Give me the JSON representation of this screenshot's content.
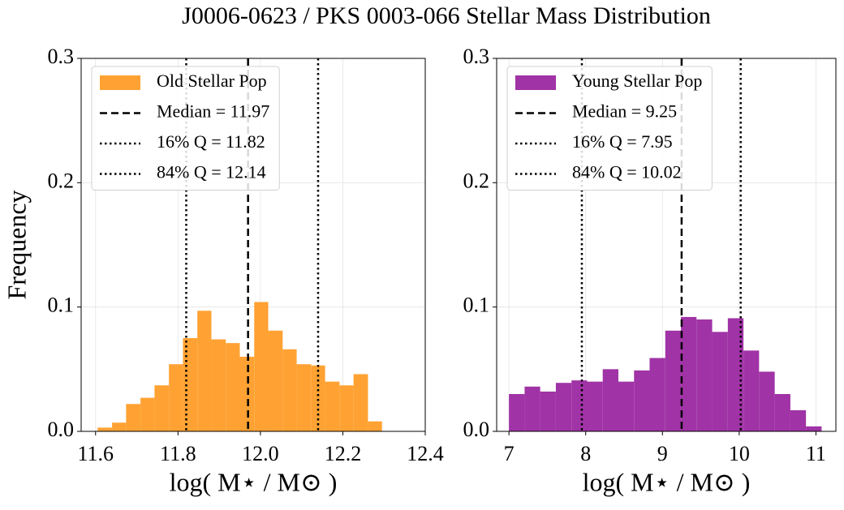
{
  "title": "J0006-0623 / PKS 0003-066 Stellar Mass Distribution",
  "chart_data": [
    {
      "type": "histogram",
      "xlabel": "log( M⋆ / M⊙ )",
      "ylabel": "Frequency",
      "bins": [
        11.605,
        11.64,
        11.674,
        11.709,
        11.743,
        11.778,
        11.812,
        11.847,
        11.881,
        11.916,
        11.95,
        11.985,
        12.019,
        12.054,
        12.088,
        12.123,
        12.157,
        12.192,
        12.226,
        12.261,
        12.295
      ],
      "series": [
        {
          "name": "Old Stellar Pop",
          "color": "#ffa233",
          "values": [
            0.003,
            0.007,
            0.022,
            0.027,
            0.037,
            0.054,
            0.075,
            0.097,
            0.074,
            0.071,
            0.06,
            0.104,
            0.081,
            0.066,
            0.054,
            0.053,
            0.04,
            0.037,
            0.046,
            0.008
          ]
        }
      ],
      "vlines": [
        {
          "label": "Median = 11.97",
          "value": 11.97,
          "style": "dashed",
          "color": "#000000"
        },
        {
          "label": "16% Q = 11.82",
          "value": 11.82,
          "style": "dotted",
          "color": "#000000"
        },
        {
          "label": "84% Q = 12.14",
          "value": 12.14,
          "style": "dotted",
          "color": "#000000"
        }
      ],
      "xlim": [
        11.565,
        12.4
      ],
      "ylim": [
        0,
        0.3
      ],
      "xticks": [
        11.6,
        11.8,
        {
          "value": 12,
          "label": "12.0"
        },
        12.2,
        12.4
      ],
      "yticks": [
        {
          "value": 0,
          "label": "0.0"
        },
        0.1,
        0.2,
        0.3
      ],
      "grid": true,
      "legend": "upper left"
    },
    {
      "type": "histogram",
      "xlabel": "log( M⋆ / M⊙ )",
      "bins": [
        7.0,
        7.204,
        7.407,
        7.611,
        7.815,
        8.019,
        8.222,
        8.426,
        8.63,
        8.833,
        9.037,
        9.241,
        9.444,
        9.648,
        9.852,
        10.056,
        10.259,
        10.463,
        10.667,
        10.87,
        11.074
      ],
      "series": [
        {
          "name": "Young Stellar Pop",
          "color": "#a033a6",
          "values": [
            0.03,
            0.036,
            0.032,
            0.039,
            0.041,
            0.04,
            0.05,
            0.04,
            0.049,
            0.059,
            0.081,
            0.092,
            0.09,
            0.08,
            0.091,
            0.065,
            0.048,
            0.03,
            0.017,
            0.004
          ]
        }
      ],
      "vlines": [
        {
          "label": "Median = 9.25",
          "value": 9.25,
          "style": "dashed",
          "color": "#000000"
        },
        {
          "label": "16% Q = 7.95",
          "value": 7.95,
          "style": "dotted",
          "color": "#000000"
        },
        {
          "label": "84% Q = 10.02",
          "value": 10.02,
          "style": "dotted",
          "color": "#000000"
        }
      ],
      "xlim": [
        6.84,
        11.26
      ],
      "ylim": [
        0,
        0.3
      ],
      "xticks": [
        7,
        8,
        9,
        10,
        11
      ],
      "yticks": [
        {
          "value": 0,
          "label": "0.0"
        },
        0.1,
        0.2,
        0.3
      ],
      "grid": true,
      "legend": "upper left"
    }
  ]
}
